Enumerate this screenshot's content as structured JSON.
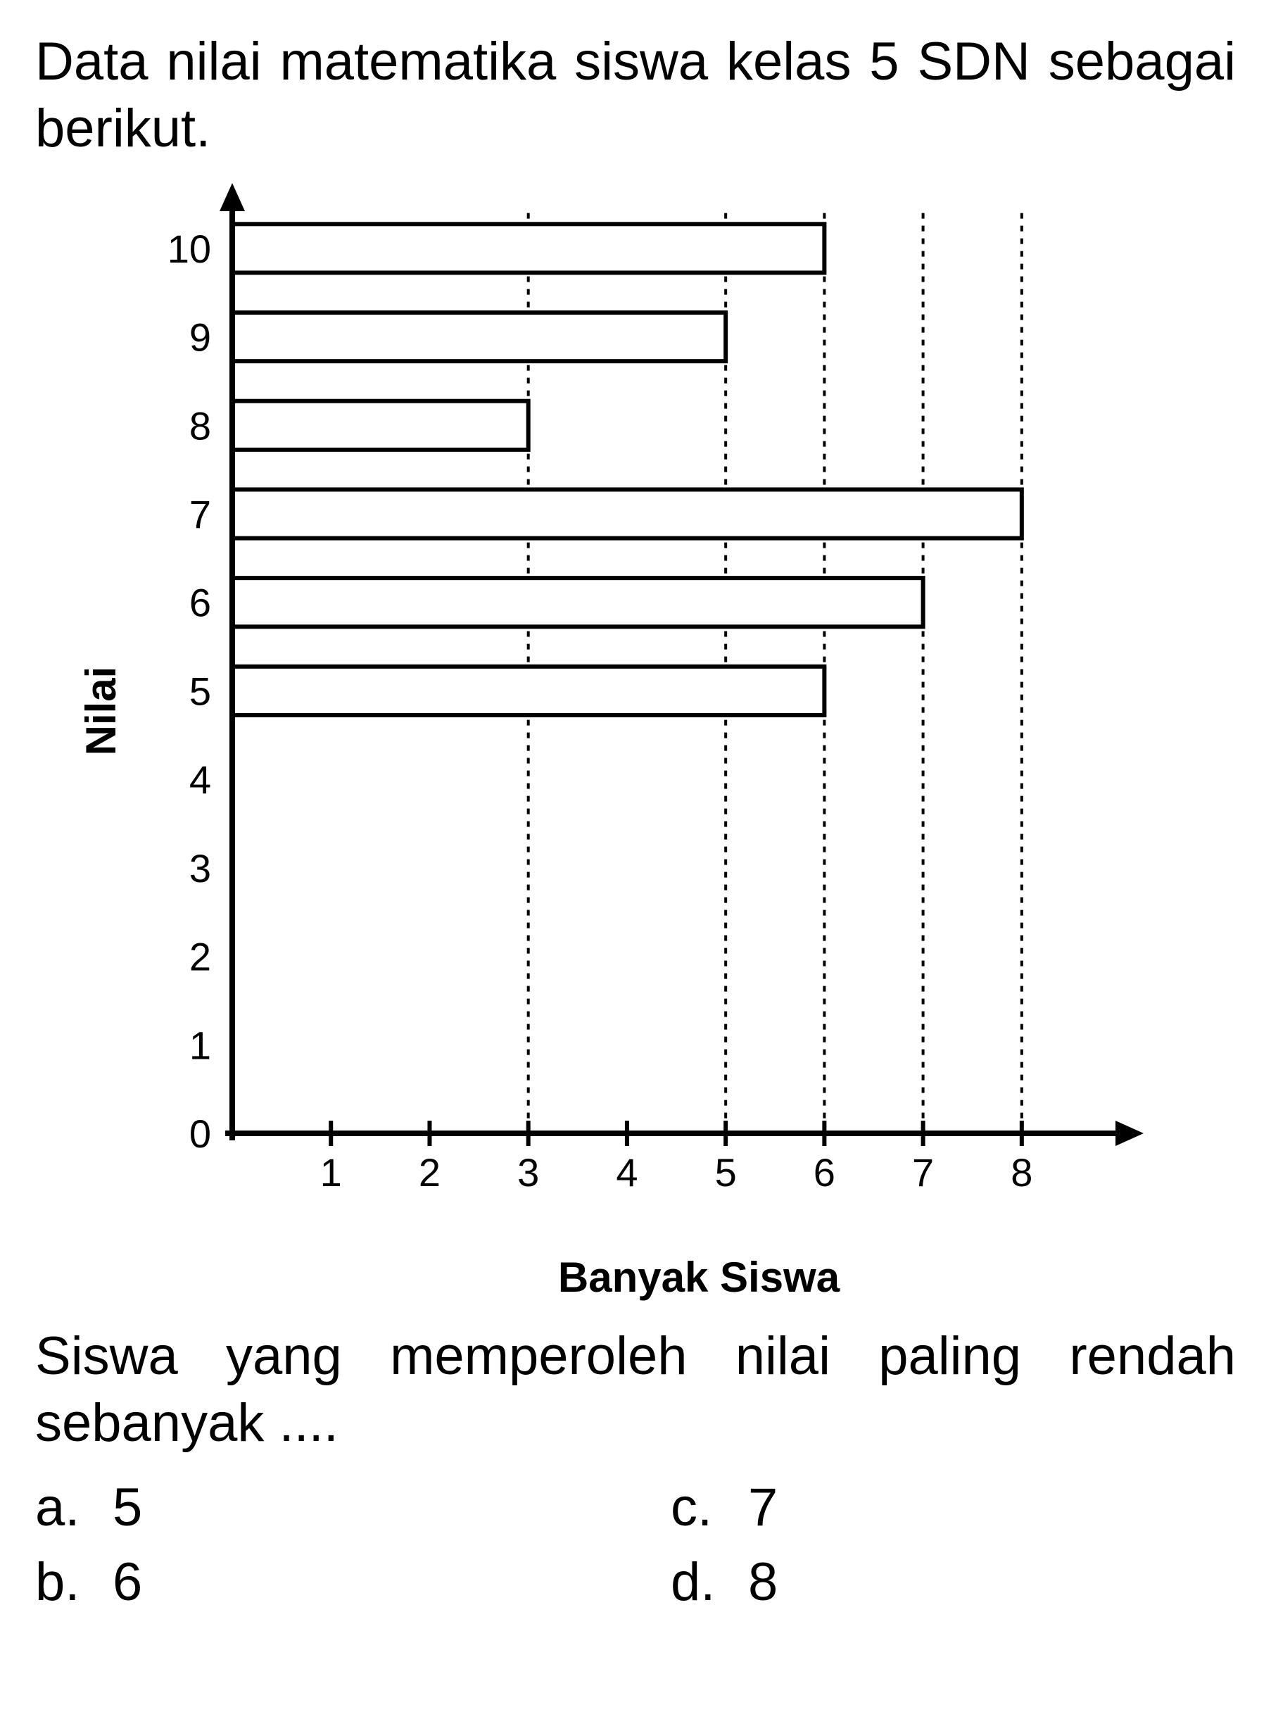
{
  "intro": "Data nilai matematika siswa kelas 5 SDN sebagai berikut.",
  "chart": {
    "type": "bar-horizontal",
    "ylabel": "Nilai",
    "xlabel": "Banyak Siswa",
    "y_ticks": [
      "0",
      "1",
      "2",
      "3",
      "4",
      "5",
      "6",
      "7",
      "8",
      "9",
      "10"
    ],
    "x_ticks": [
      "1",
      "2",
      "3",
      "4",
      "5",
      "6",
      "7",
      "8"
    ],
    "bars": [
      {
        "category": "10",
        "value": 6
      },
      {
        "category": "9",
        "value": 5
      },
      {
        "category": "8",
        "value": 3
      },
      {
        "category": "7",
        "value": 8
      },
      {
        "category": "6",
        "value": 7
      },
      {
        "category": "5",
        "value": 6
      }
    ],
    "bar_fill": "#ffffff",
    "bar_stroke": "#000000",
    "bar_stroke_width": 6,
    "axis_stroke": "#000000",
    "axis_stroke_width": 8,
    "grid_dash": "8,10",
    "tick_fontsize": 56,
    "label_fontsize": 60,
    "bar_height_ratio": 0.55,
    "background_color": "#ffffff"
  },
  "question": "Siswa yang memperoleh nilai paling rendah sebanyak ....",
  "options": {
    "a": "5",
    "b": "6",
    "c": "7",
    "d": "8"
  }
}
